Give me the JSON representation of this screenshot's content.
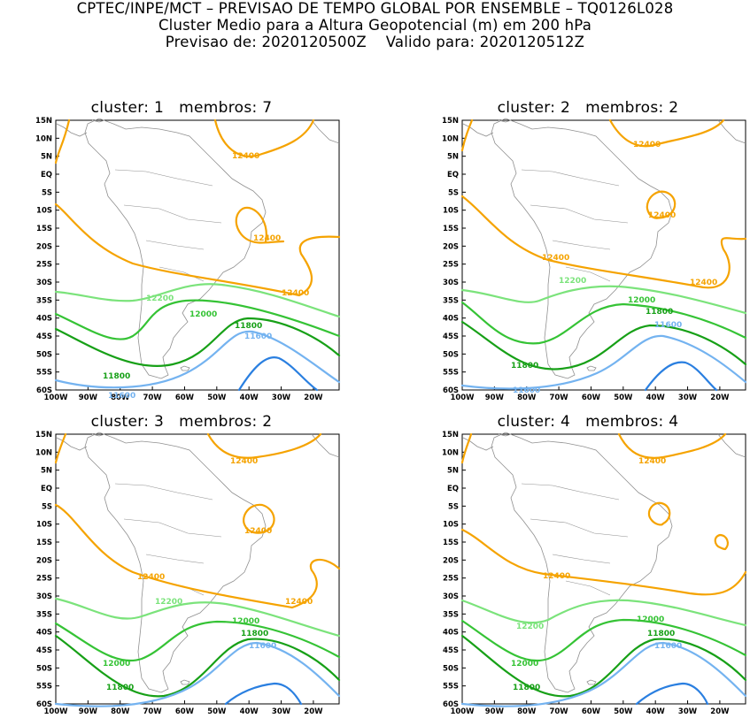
{
  "header": {
    "line1": "CPTEC/INPE/MCT – PREVISAO DE TEMPO GLOBAL POR ENSEMBLE – TQ0126L028",
    "line2": "Cluster Medio para a Altura Geopotencial (m) em 200 hPa",
    "line3": "Previsao de: 2020120500Z    Valido para: 2020120512Z"
  },
  "axes": {
    "lat_labels": [
      "15N",
      "10N",
      "5N",
      "EQ",
      "5S",
      "10S",
      "15S",
      "20S",
      "25S",
      "30S",
      "35S",
      "40S",
      "45S",
      "50S",
      "55S",
      "60S"
    ],
    "lon_labels": [
      "100W",
      "90W",
      "80W",
      "70W",
      "60W",
      "50W",
      "40W",
      "30W",
      "20W"
    ]
  },
  "colors": {
    "c12400": "#f5a300",
    "c12200": "#7be37b",
    "c12000": "#35c335",
    "c11800": "#17a017",
    "c11600": "#74b3f0",
    "c11400": "#2a7fe0",
    "coast": "#909090"
  },
  "panels": [
    {
      "title": "cluster: 1   membros: 7",
      "labels": {
        "a": "12400",
        "b": "12400",
        "c": "12400",
        "d": "12200",
        "e": "12000",
        "f": "11800",
        "g": "11800",
        "h": "11600",
        "i": "11600"
      }
    },
    {
      "title": "cluster: 2   membros: 2",
      "labels": {
        "a": "12400",
        "b": "12400",
        "c": "12400",
        "d": "12400",
        "e": "12200",
        "f": "12000",
        "g": "11800",
        "h": "11800",
        "i": "11600",
        "j": "11600"
      }
    },
    {
      "title": "cluster: 3   membros: 2",
      "labels": {
        "a": "12400",
        "b": "12400",
        "c": "12400",
        "d": "12400",
        "e": "12200",
        "f": "12000",
        "g": "12000",
        "h": "11800",
        "i": "11800",
        "j": "11600"
      }
    },
    {
      "title": "cluster: 4   membros: 4",
      "labels": {
        "a": "12400",
        "b": "12400",
        "c": "12200",
        "d": "12000",
        "e": "12000",
        "f": "11800",
        "g": "11800",
        "h": "11600"
      }
    }
  ]
}
